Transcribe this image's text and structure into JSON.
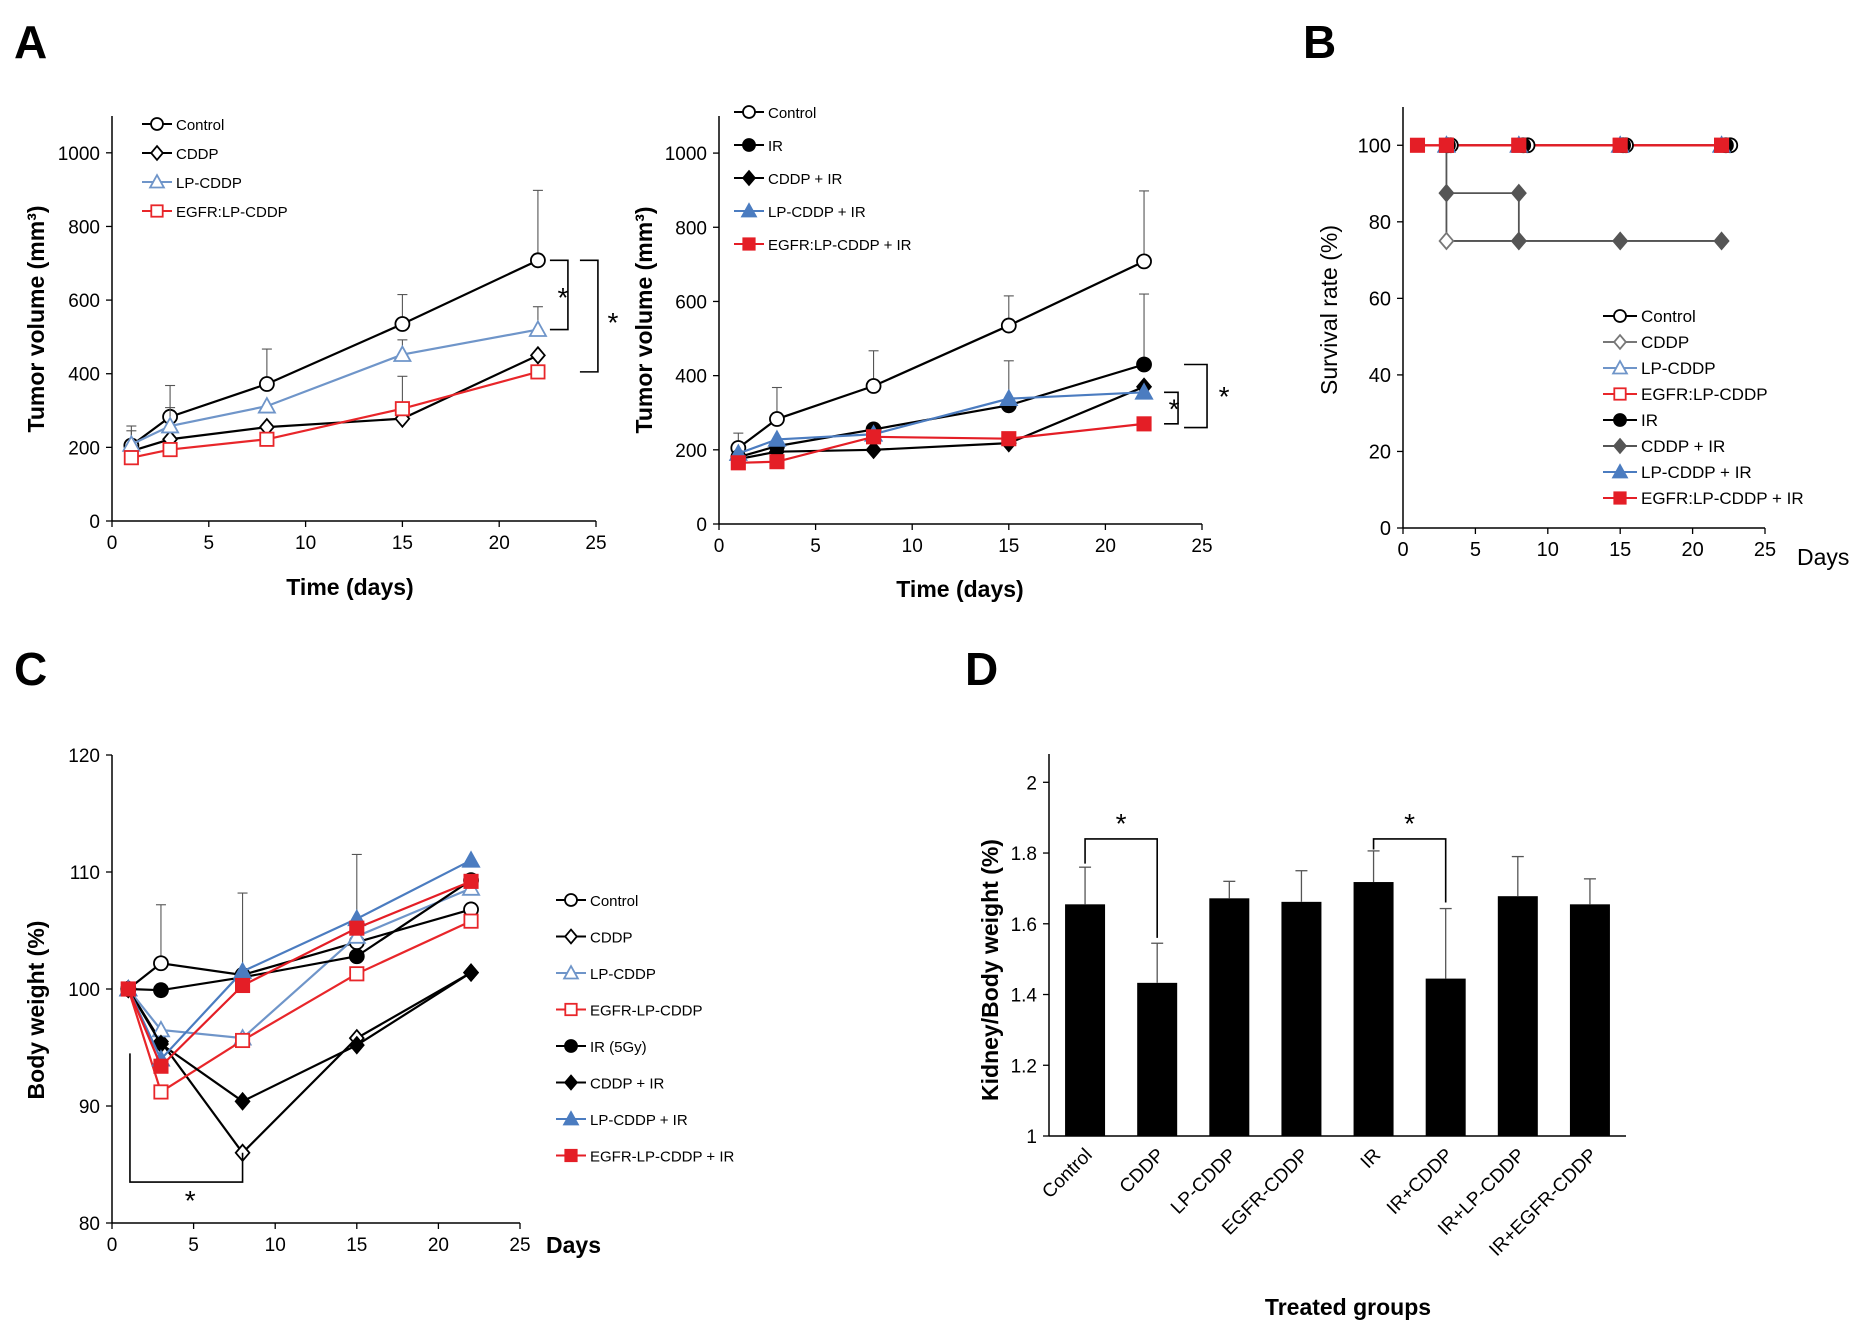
{
  "figure": {
    "panel_labels": [
      "A",
      "B",
      "C",
      "D"
    ],
    "significance_mark": "*"
  },
  "chart_data": [
    {
      "id": "A1",
      "type": "line",
      "title": "",
      "xlabel": "Time (days)",
      "ylabel": "Tumor volume (mm³)",
      "xlim": [
        0,
        25
      ],
      "ylim": [
        0,
        1100
      ],
      "xticks": [
        "0",
        "5",
        "10",
        "15",
        "20",
        "25"
      ],
      "yticks": [
        "0",
        "200",
        "400",
        "600",
        "800",
        "1000"
      ],
      "x": [
        1,
        3,
        8,
        15,
        22
      ],
      "series": [
        {
          "name": "Control",
          "color": "#000000",
          "marker": "circle-open",
          "values": [
            205,
            283,
            372,
            535,
            708
          ],
          "err": [
            40,
            85,
            95,
            80,
            190
          ]
        },
        {
          "name": "CDDP",
          "color": "#000000",
          "marker": "diamond-open",
          "values": [
            190,
            222,
            255,
            278,
            450
          ],
          "err": [
            0,
            0,
            0,
            0,
            0
          ]
        },
        {
          "name": "LP-CDDP",
          "color": "#6f95c9",
          "marker": "triangle-open",
          "values": [
            208,
            258,
            312,
            452,
            520
          ],
          "err": [
            50,
            50,
            0,
            40,
            62
          ]
        },
        {
          "name": "EGFR:LP-CDDP",
          "color": "#e8262a",
          "marker": "square-open",
          "values": [
            172,
            194,
            222,
            305,
            405
          ],
          "err": [
            0,
            0,
            0,
            88,
            0
          ]
        }
      ],
      "annotations": [
        "*",
        "*"
      ]
    },
    {
      "id": "A2",
      "type": "line",
      "title": "",
      "xlabel": "Time (days)",
      "ylabel": "Tumor volume (mm³)",
      "xlim": [
        0,
        25
      ],
      "ylim": [
        0,
        1100
      ],
      "xticks": [
        "0",
        "5",
        "10",
        "15",
        "20",
        "25"
      ],
      "yticks": [
        "0",
        "200",
        "400",
        "600",
        "800",
        "1000"
      ],
      "x": [
        1,
        3,
        8,
        15,
        22
      ],
      "series": [
        {
          "name": "Control",
          "color": "#000000",
          "marker": "circle-open",
          "values": [
            205,
            283,
            372,
            535,
            708
          ],
          "err": [
            40,
            85,
            95,
            80,
            190
          ]
        },
        {
          "name": "IR",
          "color": "#000000",
          "marker": "circle-filled",
          "values": [
            180,
            210,
            255,
            320,
            430
          ],
          "err": [
            0,
            0,
            0,
            120,
            190
          ]
        },
        {
          "name": "CDDP + IR",
          "color": "#000000",
          "marker": "diamond-filled",
          "values": [
            175,
            195,
            200,
            218,
            370
          ],
          "err": [
            0,
            0,
            0,
            0,
            0
          ]
        },
        {
          "name": "LP-CDDP + IR",
          "color": "#4b7cc0",
          "marker": "triangle-filled",
          "values": [
            190,
            228,
            242,
            338,
            355
          ],
          "err": [
            0,
            0,
            0,
            0,
            0
          ]
        },
        {
          "name": "EGFR:LP-CDDP + IR",
          "color": "#e41e26",
          "marker": "square-filled",
          "values": [
            165,
            168,
            235,
            230,
            270
          ],
          "err": [
            0,
            0,
            0,
            0,
            0
          ]
        }
      ],
      "annotations": [
        "*",
        "*"
      ]
    },
    {
      "id": "B",
      "type": "line",
      "title": "",
      "xlabel": "Days",
      "ylabel": "Survival rate (%)",
      "xlim": [
        0,
        25
      ],
      "ylim": [
        0,
        110
      ],
      "xticks": [
        "0",
        "5",
        "10",
        "15",
        "20",
        "25"
      ],
      "yticks": [
        "0",
        "20",
        "40",
        "60",
        "80",
        "100"
      ],
      "series": [
        {
          "name": "Control",
          "color": "#000000",
          "marker": "circle-open",
          "x": [
            3.3,
            8.6,
            15.4,
            22.6
          ],
          "values": [
            100,
            100,
            100,
            100
          ]
        },
        {
          "name": "CDDP",
          "color": "#777777",
          "marker": "diamond-open",
          "x": [
            3,
            8,
            15,
            22
          ],
          "values": [
            75,
            75,
            75,
            75
          ]
        },
        {
          "name": "LP-CDDP",
          "color": "#6f95c9",
          "marker": "triangle-open",
          "x": [
            3,
            8,
            15,
            22
          ],
          "values": [
            100,
            100,
            100,
            100
          ]
        },
        {
          "name": "EGFR:LP-CDDP",
          "color": "#e8262a",
          "marker": "square-open",
          "x": [
            3,
            8,
            15,
            22
          ],
          "values": [
            100,
            100,
            100,
            100
          ]
        },
        {
          "name": "IR",
          "color": "#000000",
          "marker": "circle-filled",
          "x": [
            3.1,
            8.3,
            15.2,
            22.3
          ],
          "values": [
            100,
            100,
            100,
            100
          ]
        },
        {
          "name": "CDDP + IR",
          "color": "#555555",
          "marker": "diamond-filled",
          "x": [
            3,
            8,
            8,
            15,
            22
          ],
          "values": [
            87.5,
            87.5,
            75,
            75,
            75
          ]
        },
        {
          "name": "LP-CDDP + IR",
          "color": "#4b7cc0",
          "marker": "triangle-filled",
          "x": [
            3,
            8,
            15,
            22
          ],
          "values": [
            100,
            100,
            100,
            100
          ]
        },
        {
          "name": "EGFR:LP-CDDP + IR",
          "color": "#e41e26",
          "marker": "square-filled",
          "x": [
            1,
            3,
            8,
            15,
            22
          ],
          "values": [
            100,
            100,
            100,
            100,
            100
          ]
        }
      ]
    },
    {
      "id": "C",
      "type": "line",
      "title": "",
      "xlabel": "Days",
      "ylabel": "Body weight (%)",
      "xlim": [
        0,
        25
      ],
      "ylim": [
        80,
        120
      ],
      "xticks": [
        "0",
        "5",
        "10",
        "15",
        "20",
        "25"
      ],
      "yticks": [
        "80",
        "90",
        "100",
        "110",
        "120"
      ],
      "x": [
        1,
        3,
        8,
        15,
        22
      ],
      "series": [
        {
          "name": "Control",
          "color": "#000000",
          "marker": "circle-open",
          "values": [
            100,
            102.2,
            101.2,
            104.0,
            106.8
          ],
          "err": [
            0,
            5,
            7,
            7.5,
            0
          ]
        },
        {
          "name": "CDDP",
          "color": "#000000",
          "marker": "diamond-open",
          "values": [
            100,
            95.5,
            86.0,
            95.8,
            101.4
          ],
          "err": [
            0,
            0,
            0,
            0,
            0
          ]
        },
        {
          "name": "LP-CDDP",
          "color": "#6f95c9",
          "marker": "triangle-open",
          "values": [
            100,
            96.5,
            95.8,
            104.5,
            108.6
          ],
          "err": [
            0,
            0,
            0,
            0,
            0
          ]
        },
        {
          "name": "EGFR-LP-CDDP",
          "color": "#e8262a",
          "marker": "square-open",
          "values": [
            100,
            91.2,
            95.6,
            101.3,
            105.8
          ],
          "err": [
            0,
            0,
            0,
            0,
            0
          ]
        },
        {
          "name": "IR (5Gy)",
          "color": "#000000",
          "marker": "circle-filled",
          "values": [
            100,
            99.9,
            101.0,
            102.8,
            109.3
          ],
          "err": [
            0,
            0,
            0,
            0,
            0
          ]
        },
        {
          "name": "CDDP + IR",
          "color": "#000000",
          "marker": "diamond-filled",
          "values": [
            100,
            95.3,
            90.4,
            95.2,
            101.4
          ],
          "err": [
            0,
            0,
            0,
            0,
            0
          ]
        },
        {
          "name": "LP-CDDP + IR",
          "color": "#4b7cc0",
          "marker": "triangle-filled",
          "values": [
            100,
            94.0,
            101.5,
            106.0,
            111.0
          ],
          "err": [
            0,
            0,
            0,
            0,
            0
          ]
        },
        {
          "name": "EGFR-LP-CDDP + IR",
          "color": "#e41e26",
          "marker": "square-filled",
          "values": [
            100,
            93.4,
            100.3,
            105.2,
            109.2
          ],
          "err": [
            0,
            0,
            0,
            0,
            0
          ]
        }
      ],
      "annotations": [
        "*"
      ]
    },
    {
      "id": "D",
      "type": "bar",
      "title": "",
      "xlabel": "Treated groups",
      "ylabel": "Kidney/Body weight (%)",
      "ylim": [
        1,
        2
      ],
      "yticks": [
        "1",
        "1.2",
        "1.4",
        "1.6",
        "1.8",
        "2"
      ],
      "categories": [
        "Control",
        "CDDP",
        "LP-CDDP",
        "EGFR-CDDP",
        "IR",
        "IR+CDDP",
        "IR+LP-CDDP",
        "IR+EGFR-CDDP"
      ],
      "values": [
        1.655,
        1.433,
        1.672,
        1.662,
        1.718,
        1.445,
        1.678,
        1.655
      ],
      "err": [
        0.105,
        0.112,
        0.048,
        0.088,
        0.088,
        0.198,
        0.112,
        0.072
      ],
      "color": "#000000",
      "annotations": [
        "*",
        "*"
      ]
    }
  ]
}
